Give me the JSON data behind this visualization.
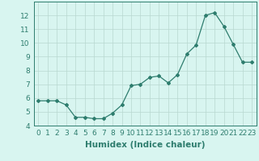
{
  "x": [
    0,
    1,
    2,
    3,
    4,
    5,
    6,
    7,
    8,
    9,
    10,
    11,
    12,
    13,
    14,
    15,
    16,
    17,
    18,
    19,
    20,
    21,
    22,
    23
  ],
  "y": [
    5.8,
    5.8,
    5.8,
    5.5,
    4.6,
    4.6,
    4.5,
    4.5,
    4.9,
    5.5,
    6.9,
    7.0,
    7.5,
    7.6,
    7.1,
    7.7,
    9.2,
    9.85,
    12.0,
    12.2,
    11.2,
    9.9,
    8.6,
    8.6
  ],
  "xlabel": "Humidex (Indice chaleur)",
  "xlim": [
    -0.5,
    23.5
  ],
  "ylim": [
    4,
    13
  ],
  "yticks": [
    4,
    5,
    6,
    7,
    8,
    9,
    10,
    11,
    12
  ],
  "xticks": [
    0,
    1,
    2,
    3,
    4,
    5,
    6,
    7,
    8,
    9,
    10,
    11,
    12,
    13,
    14,
    15,
    16,
    17,
    18,
    19,
    20,
    21,
    22,
    23
  ],
  "line_color": "#2e7d6e",
  "marker": "D",
  "marker_size": 2.0,
  "bg_color": "#d8f5f0",
  "grid_color": "#b8d8d0",
  "xlabel_fontsize": 7.5,
  "tick_fontsize": 6.5
}
